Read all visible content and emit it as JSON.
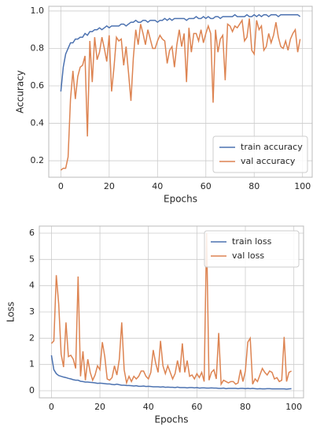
{
  "chart_data": [
    {
      "type": "line",
      "xlabel": "Epochs",
      "ylabel": "Accuracy",
      "x": [
        0,
        1,
        2,
        3,
        4,
        5,
        6,
        7,
        8,
        9,
        10,
        11,
        12,
        13,
        14,
        15,
        16,
        17,
        18,
        19,
        20,
        21,
        22,
        23,
        24,
        25,
        26,
        27,
        28,
        29,
        30,
        31,
        32,
        33,
        34,
        35,
        36,
        37,
        38,
        39,
        40,
        41,
        42,
        43,
        44,
        45,
        46,
        47,
        48,
        49,
        50,
        51,
        52,
        53,
        54,
        55,
        56,
        57,
        58,
        59,
        60,
        61,
        62,
        63,
        64,
        65,
        66,
        67,
        68,
        69,
        70,
        71,
        72,
        73,
        74,
        75,
        76,
        77,
        78,
        79,
        80,
        81,
        82,
        83,
        84,
        85,
        86,
        87,
        88,
        89,
        90,
        91,
        92,
        93,
        94,
        95,
        96,
        97,
        98,
        99
      ],
      "series": [
        {
          "name": "train accuracy",
          "color": "#4c72b0",
          "values": [
            0.57,
            0.7,
            0.77,
            0.8,
            0.83,
            0.83,
            0.85,
            0.85,
            0.86,
            0.86,
            0.88,
            0.87,
            0.89,
            0.89,
            0.9,
            0.9,
            0.91,
            0.9,
            0.91,
            0.92,
            0.91,
            0.92,
            0.92,
            0.92,
            0.92,
            0.93,
            0.93,
            0.92,
            0.93,
            0.94,
            0.94,
            0.95,
            0.94,
            0.94,
            0.95,
            0.95,
            0.94,
            0.95,
            0.95,
            0.95,
            0.94,
            0.95,
            0.95,
            0.96,
            0.95,
            0.96,
            0.95,
            0.96,
            0.96,
            0.96,
            0.96,
            0.96,
            0.95,
            0.96,
            0.96,
            0.96,
            0.97,
            0.96,
            0.96,
            0.97,
            0.96,
            0.97,
            0.96,
            0.96,
            0.97,
            0.97,
            0.96,
            0.97,
            0.97,
            0.97,
            0.97,
            0.97,
            0.98,
            0.97,
            0.97,
            0.97,
            0.97,
            0.98,
            0.97,
            0.97,
            0.98,
            0.97,
            0.98,
            0.97,
            0.98,
            0.98,
            0.97,
            0.98,
            0.98,
            0.98,
            0.97,
            0.98,
            0.98,
            0.98,
            0.98,
            0.98,
            0.98,
            0.98,
            0.98,
            0.97
          ]
        },
        {
          "name": "val accuracy",
          "color": "#dd8452",
          "values": [
            0.15,
            0.16,
            0.16,
            0.22,
            0.53,
            0.68,
            0.53,
            0.65,
            0.7,
            0.71,
            0.76,
            0.33,
            0.84,
            0.62,
            0.86,
            0.74,
            0.78,
            0.86,
            0.8,
            0.73,
            0.87,
            0.57,
            0.7,
            0.86,
            0.84,
            0.85,
            0.71,
            0.81,
            0.67,
            0.52,
            0.75,
            0.9,
            0.82,
            0.93,
            0.88,
            0.82,
            0.9,
            0.85,
            0.8,
            0.8,
            0.84,
            0.87,
            0.85,
            0.84,
            0.72,
            0.79,
            0.81,
            0.7,
            0.82,
            0.9,
            0.81,
            0.88,
            0.62,
            0.91,
            0.78,
            0.88,
            0.88,
            0.84,
            0.9,
            0.83,
            0.88,
            0.92,
            0.88,
            0.51,
            0.9,
            0.78,
            0.85,
            0.87,
            0.63,
            0.93,
            0.92,
            0.89,
            0.92,
            0.91,
            0.93,
            0.95,
            0.84,
            0.86,
            0.96,
            0.79,
            0.77,
            0.95,
            0.9,
            0.92,
            0.79,
            0.81,
            0.88,
            0.83,
            0.87,
            0.94,
            0.86,
            0.81,
            0.8,
            0.84,
            0.79,
            0.85,
            0.88,
            0.9,
            0.78,
            0.85
          ]
        }
      ],
      "xlim": [
        -5,
        104
      ],
      "ylim": [
        0.112,
        1.025
      ],
      "xticks": [
        0,
        20,
        40,
        60,
        80,
        100
      ],
      "yticks": [
        0.2,
        0.4,
        0.6,
        0.8,
        {
          "value": 1,
          "label": "1.0"
        }
      ],
      "grid": true,
      "legend": "lower right"
    },
    {
      "type": "line",
      "xlabel": "Epochs",
      "ylabel": "Loss",
      "x": [
        0,
        1,
        2,
        3,
        4,
        5,
        6,
        7,
        8,
        9,
        10,
        11,
        12,
        13,
        14,
        15,
        16,
        17,
        18,
        19,
        20,
        21,
        22,
        23,
        24,
        25,
        26,
        27,
        28,
        29,
        30,
        31,
        32,
        33,
        34,
        35,
        36,
        37,
        38,
        39,
        40,
        41,
        42,
        43,
        44,
        45,
        46,
        47,
        48,
        49,
        50,
        51,
        52,
        53,
        54,
        55,
        56,
        57,
        58,
        59,
        60,
        61,
        62,
        63,
        64,
        65,
        66,
        67,
        68,
        69,
        70,
        71,
        72,
        73,
        74,
        75,
        76,
        77,
        78,
        79,
        80,
        81,
        82,
        83,
        84,
        85,
        86,
        87,
        88,
        89,
        90,
        91,
        92,
        93,
        94,
        95,
        96,
        97,
        98,
        99
      ],
      "series": [
        {
          "name": "train loss",
          "color": "#4c72b0",
          "values": [
            1.35,
            0.8,
            0.65,
            0.58,
            0.55,
            0.52,
            0.5,
            0.47,
            0.45,
            0.42,
            0.4,
            0.4,
            0.36,
            0.35,
            0.33,
            0.33,
            0.32,
            0.31,
            0.3,
            0.28,
            0.29,
            0.28,
            0.27,
            0.26,
            0.26,
            0.24,
            0.23,
            0.25,
            0.23,
            0.21,
            0.21,
            0.2,
            0.2,
            0.19,
            0.18,
            0.19,
            0.17,
            0.17,
            0.18,
            0.16,
            0.17,
            0.16,
            0.15,
            0.15,
            0.15,
            0.14,
            0.15,
            0.13,
            0.14,
            0.13,
            0.13,
            0.12,
            0.14,
            0.12,
            0.12,
            0.12,
            0.11,
            0.12,
            0.12,
            0.11,
            0.12,
            0.1,
            0.11,
            0.11,
            0.1,
            0.1,
            0.11,
            0.1,
            0.1,
            0.09,
            0.09,
            0.1,
            0.08,
            0.09,
            0.09,
            0.09,
            0.09,
            0.08,
            0.09,
            0.09,
            0.08,
            0.09,
            0.08,
            0.09,
            0.08,
            0.07,
            0.08,
            0.07,
            0.07,
            0.08,
            0.08,
            0.07,
            0.07,
            0.07,
            0.07,
            0.07,
            0.07,
            0.06,
            0.07,
            0.08
          ]
        },
        {
          "name": "val loss",
          "color": "#dd8452",
          "values": [
            1.8,
            1.9,
            4.4,
            3.3,
            1.4,
            0.9,
            2.6,
            1.3,
            1.35,
            1.2,
            0.85,
            4.35,
            0.55,
            1.5,
            0.4,
            1.2,
            0.7,
            0.4,
            0.6,
            0.95,
            0.8,
            1.85,
            1.3,
            0.45,
            0.4,
            0.5,
            0.95,
            0.6,
            1.2,
            2.6,
            0.8,
            0.3,
            0.55,
            0.35,
            0.55,
            0.45,
            0.55,
            0.75,
            0.75,
            0.55,
            0.45,
            0.7,
            1.55,
            1.05,
            0.7,
            1.9,
            0.95,
            0.65,
            0.95,
            0.7,
            0.45,
            0.65,
            1.15,
            0.7,
            1.8,
            0.7,
            1.15,
            0.55,
            0.6,
            0.45,
            0.65,
            0.5,
            0.7,
            0.35,
            6.0,
            0.4,
            0.7,
            0.8,
            0.45,
            2.2,
            0.25,
            0.4,
            0.35,
            0.3,
            0.35,
            0.35,
            0.25,
            0.3,
            0.8,
            0.35,
            0.75,
            1.85,
            2.0,
            0.25,
            0.45,
            0.35,
            0.6,
            0.85,
            0.7,
            0.6,
            0.75,
            0.7,
            0.45,
            0.5,
            0.35,
            0.4,
            2.05,
            0.35,
            0.7,
            0.75
          ]
        }
      ],
      "xlim": [
        -5,
        104
      ],
      "ylim": [
        -0.27,
        6.27
      ],
      "xticks": [
        0,
        20,
        40,
        60,
        80,
        100
      ],
      "yticks": [
        0,
        1,
        2,
        3,
        4,
        5,
        6
      ],
      "grid": true,
      "legend": "upper right"
    }
  ]
}
